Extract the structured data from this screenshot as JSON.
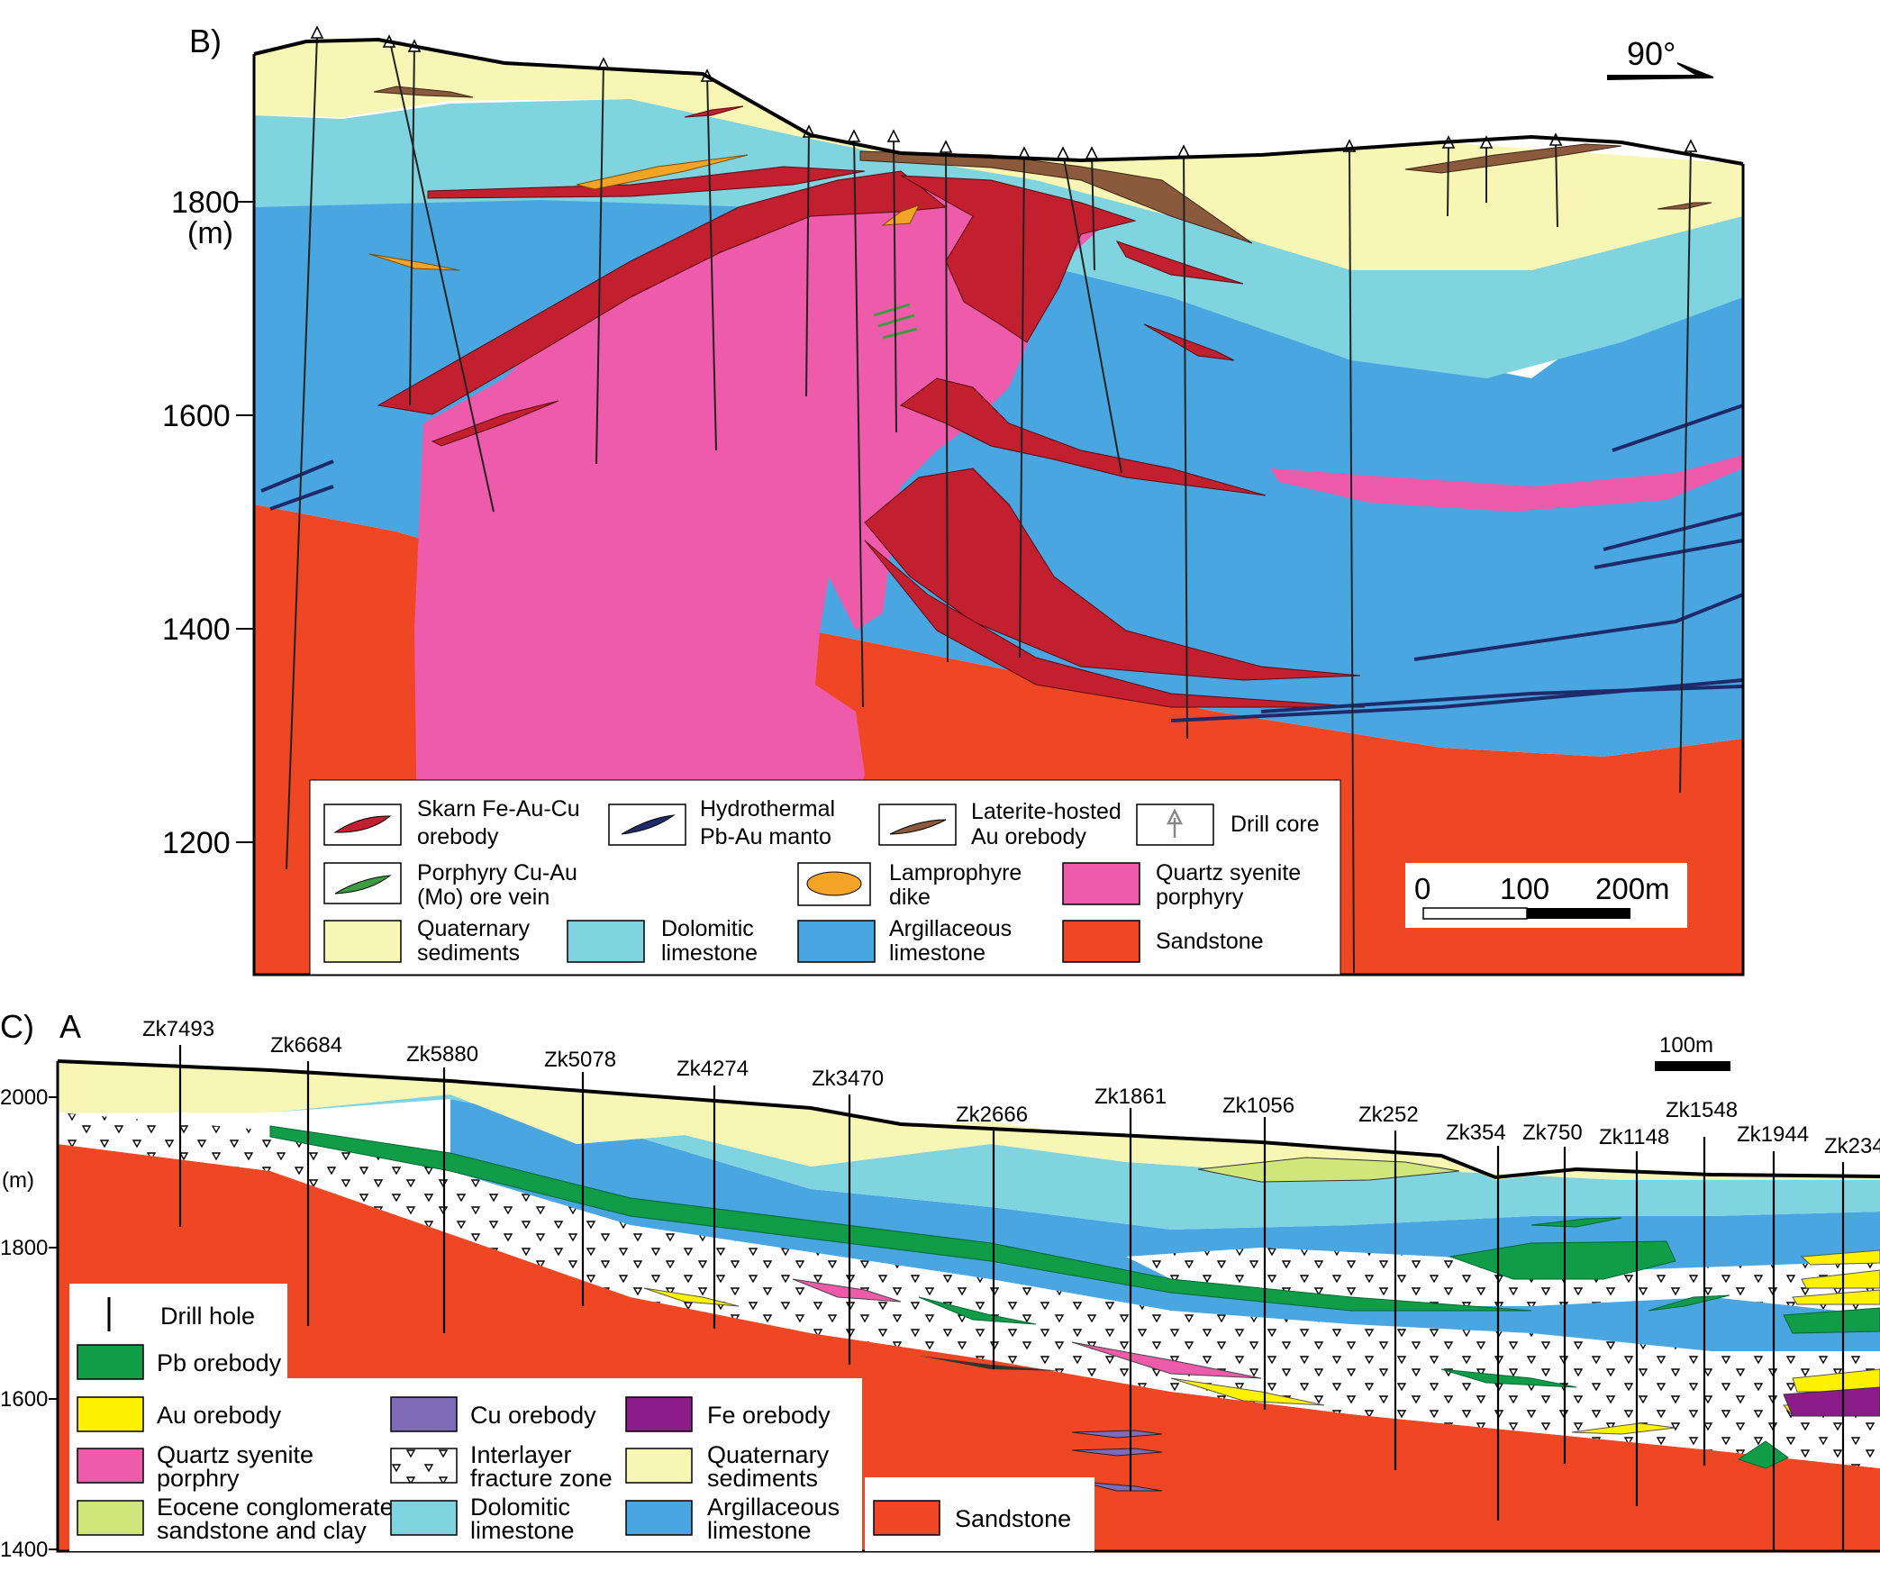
{
  "colors": {
    "quaternary": "#f8f6b4",
    "dolomitic": "#7fd4df",
    "argillaceous": "#4aa6e0",
    "sandstone": "#ef4723",
    "syenite": "#ee5baa",
    "skarn": "#c21f2f",
    "laterite": "#8b5a3c",
    "lamprophyre": "#f3a427",
    "porphyry_vein": "#3b9d3f",
    "manto": "#1f2a6a",
    "pb": "#119d47",
    "au": "#fff200",
    "cu": "#7f6cb9",
    "fe": "#8c1c89",
    "eocene": "#d0e67a",
    "fracture": "#ffffff"
  },
  "panel_b": {
    "label": "B)",
    "unit": "(m)",
    "elevations": [
      {
        "value": 1800,
        "text": "1800"
      },
      {
        "value": 1600,
        "text": "1600"
      },
      {
        "value": 1400,
        "text": "1400"
      },
      {
        "value": 1200,
        "text": "1200"
      }
    ],
    "orientation": "90°",
    "scalebar": {
      "ticks": [
        "0",
        "100",
        "200m"
      ]
    },
    "legend": [
      {
        "key": "skarn",
        "lines": [
          "Skarn Fe-Au-Cu",
          "orebody"
        ],
        "symbol": "lens",
        "color": "#c21f2f"
      },
      {
        "key": "manto",
        "lines": [
          "Hydrothermal",
          "Pb-Au manto"
        ],
        "symbol": "lens",
        "color": "#1f2a6a"
      },
      {
        "key": "laterite",
        "lines": [
          "Laterite-hosted",
          "Au orebody"
        ],
        "symbol": "lens",
        "color": "#8b5a3c"
      },
      {
        "key": "drill",
        "lines": [
          "Drill core"
        ],
        "symbol": "arrow",
        "color": "#888888"
      },
      {
        "key": "porphyry_vein",
        "lines": [
          "Porphyry Cu-Au",
          "(Mo) ore vein"
        ],
        "symbol": "lens",
        "color": "#3b9d3f"
      },
      {
        "key": "lamprophyre",
        "lines": [
          "Lamprophyre",
          "dike"
        ],
        "symbol": "ellipse",
        "color": "#f3a427"
      },
      {
        "key": "syenite",
        "lines": [
          "Quartz syenite",
          "porphyry"
        ],
        "symbol": "box",
        "color": "#ee5baa"
      },
      {
        "key": "quaternary",
        "lines": [
          "Quaternary",
          "sediments"
        ],
        "symbol": "box",
        "color": "#f8f6b4"
      },
      {
        "key": "dolomitic",
        "lines": [
          "Dolomitic",
          "limestone"
        ],
        "symbol": "box",
        "color": "#7fd4df"
      },
      {
        "key": "argillaceous",
        "lines": [
          "Argillaceous",
          "limestone"
        ],
        "symbol": "box",
        "color": "#4aa6e0"
      },
      {
        "key": "sandstone",
        "lines": [
          "Sandstone"
        ],
        "symbol": "box",
        "color": "#ef4723"
      }
    ]
  },
  "panel_c": {
    "label": "C)",
    "section_end": "A",
    "unit": "(m)",
    "elevations": [
      {
        "value": 2000,
        "text": "2000"
      },
      {
        "value": 1800,
        "text": "1800"
      },
      {
        "value": 1600,
        "text": "1600"
      },
      {
        "value": 1400,
        "text": "1400"
      }
    ],
    "scalebar": "100m",
    "drillholes": [
      "Zk7493",
      "Zk6684",
      "Zk5880",
      "Zk5078",
      "Zk4274",
      "Zk3470",
      "Zk2666",
      "Zk1861",
      "Zk1056",
      "Zk252",
      "Zk354",
      "Zk750",
      "Zk1148",
      "Zk1548",
      "Zk1944",
      "Zk234"
    ],
    "legend": [
      {
        "key": "drill",
        "lines": [
          "Drill hole"
        ],
        "symbol": "line",
        "color": "#000000"
      },
      {
        "key": "pb",
        "lines": [
          "Pb orebody"
        ],
        "symbol": "box",
        "color": "#119d47"
      },
      {
        "key": "au",
        "lines": [
          "Au orebody"
        ],
        "symbol": "box",
        "color": "#fff200"
      },
      {
        "key": "cu",
        "lines": [
          "Cu orebody"
        ],
        "symbol": "box",
        "color": "#7f6cb9"
      },
      {
        "key": "fe",
        "lines": [
          "Fe orebody"
        ],
        "symbol": "box",
        "color": "#8c1c89"
      },
      {
        "key": "syenite",
        "lines": [
          "Quartz syenite",
          "porphry"
        ],
        "symbol": "box",
        "color": "#ee5baa"
      },
      {
        "key": "fracture",
        "lines": [
          "Interlayer",
          "fracture zone"
        ],
        "symbol": "hatch",
        "color": "#ffffff"
      },
      {
        "key": "quaternary",
        "lines": [
          "Quaternary",
          "sediments"
        ],
        "symbol": "box",
        "color": "#f8f6b4"
      },
      {
        "key": "eocene",
        "lines": [
          "Eocene conglomerate,",
          "sandstone and clay"
        ],
        "symbol": "box",
        "color": "#d0e67a"
      },
      {
        "key": "dolomitic",
        "lines": [
          "Dolomitic",
          "limestone"
        ],
        "symbol": "box",
        "color": "#7fd4df"
      },
      {
        "key": "argillaceous",
        "lines": [
          "Argillaceous",
          "limestone"
        ],
        "symbol": "box",
        "color": "#4aa6e0"
      },
      {
        "key": "sandstone",
        "lines": [
          "Sandstone"
        ],
        "symbol": "box",
        "color": "#ef4723"
      }
    ]
  }
}
